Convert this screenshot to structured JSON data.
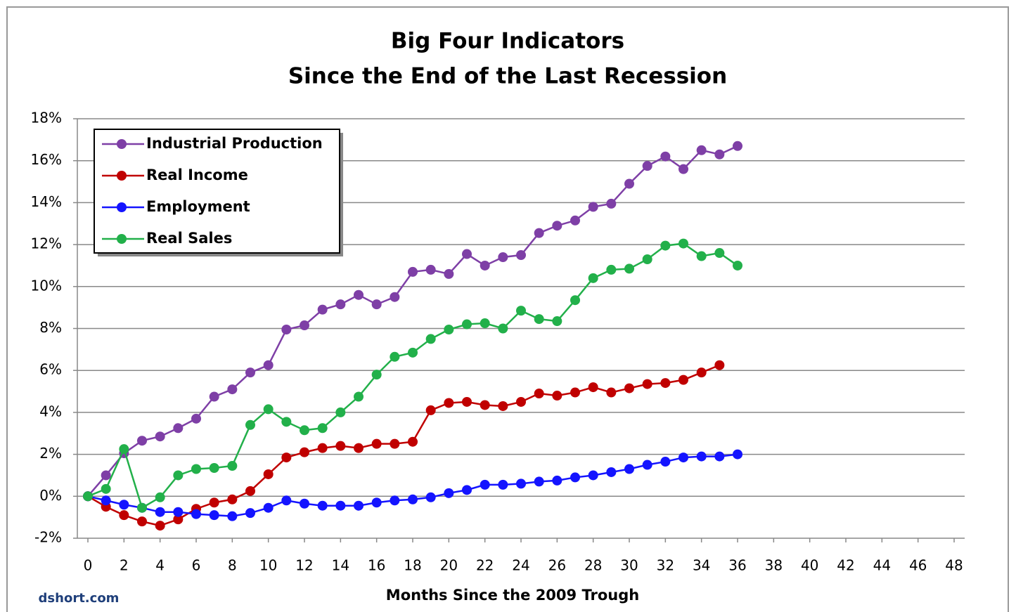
{
  "chart_data": {
    "type": "line",
    "title": [
      "Big Four Indicators",
      "Since the End of the Last Recession"
    ],
    "x_label": "Months Since the 2009 Trough",
    "source": "dshort.com",
    "x": [
      0,
      1,
      2,
      3,
      4,
      5,
      6,
      7,
      8,
      9,
      10,
      11,
      12,
      13,
      14,
      15,
      16,
      17,
      18,
      19,
      20,
      21,
      22,
      23,
      24,
      25,
      26,
      27,
      28,
      29,
      30,
      31,
      32,
      33,
      34,
      35,
      36
    ],
    "series": [
      {
        "name": "Industrial Production",
        "color": "#7e3fa6",
        "values": [
          0,
          1.0,
          2.05,
          2.65,
          2.85,
          3.25,
          3.7,
          4.75,
          5.1,
          5.9,
          6.25,
          7.95,
          8.15,
          8.9,
          9.15,
          9.6,
          9.15,
          9.5,
          10.7,
          10.8,
          10.6,
          11.55,
          11.0,
          11.4,
          11.5,
          12.55,
          12.9,
          13.15,
          13.8,
          13.95,
          14.9,
          15.75,
          16.2,
          15.6,
          16.5,
          16.3,
          16.7
        ]
      },
      {
        "name": "Real Income",
        "color": "#c00000",
        "values": [
          0,
          -0.5,
          -0.9,
          -1.2,
          -1.4,
          -1.1,
          -0.6,
          -0.3,
          -0.15,
          0.25,
          1.05,
          1.85,
          2.1,
          2.3,
          2.4,
          2.3,
          2.5,
          2.5,
          2.6,
          4.1,
          4.45,
          4.5,
          4.35,
          4.3,
          4.5,
          4.9,
          4.8,
          4.95,
          5.2,
          4.95,
          5.15,
          5.35,
          5.4,
          5.55,
          5.9,
          6.25,
          null
        ]
      },
      {
        "name": "Employment",
        "color": "#1414ff",
        "values": [
          0,
          -0.2,
          -0.4,
          -0.55,
          -0.75,
          -0.75,
          -0.85,
          -0.9,
          -0.95,
          -0.8,
          -0.55,
          -0.2,
          -0.35,
          -0.45,
          -0.45,
          -0.45,
          -0.3,
          -0.2,
          -0.15,
          -0.05,
          0.15,
          0.3,
          0.55,
          0.55,
          0.6,
          0.7,
          0.75,
          0.9,
          1.0,
          1.15,
          1.3,
          1.5,
          1.65,
          1.85,
          1.9,
          1.9,
          2.0
        ]
      },
      {
        "name": "Real Sales",
        "color": "#22b04a",
        "values": [
          0,
          0.35,
          2.25,
          -0.55,
          -0.05,
          1.0,
          1.3,
          1.35,
          1.45,
          3.4,
          4.15,
          3.55,
          3.15,
          3.25,
          4.0,
          4.75,
          5.8,
          6.65,
          6.85,
          7.5,
          7.95,
          8.2,
          8.25,
          8.0,
          8.85,
          8.45,
          8.35,
          9.35,
          10.4,
          10.8,
          10.85,
          11.3,
          11.95,
          12.05,
          11.45,
          11.6,
          11.0
        ]
      }
    ],
    "xlim": [
      0,
      48
    ],
    "xticks": [
      0,
      2,
      4,
      6,
      8,
      10,
      12,
      14,
      16,
      18,
      20,
      22,
      24,
      26,
      28,
      30,
      32,
      34,
      36,
      38,
      40,
      42,
      44,
      46,
      48
    ],
    "ylim": [
      -2,
      18
    ],
    "yticks": [
      {
        "value": -2,
        "label": "-2%"
      },
      {
        "value": 0,
        "label": "0%"
      },
      {
        "value": 2,
        "label": "2%"
      },
      {
        "value": 4,
        "label": "4%"
      },
      {
        "value": 6,
        "label": "6%"
      },
      {
        "value": 8,
        "label": "8%"
      },
      {
        "value": 10,
        "label": "10%"
      },
      {
        "value": 12,
        "label": "12%"
      },
      {
        "value": 14,
        "label": "14%"
      },
      {
        "value": 16,
        "label": "16%"
      },
      {
        "value": 18,
        "label": "18%"
      }
    ],
    "grid": true,
    "legend": "top-left"
  }
}
